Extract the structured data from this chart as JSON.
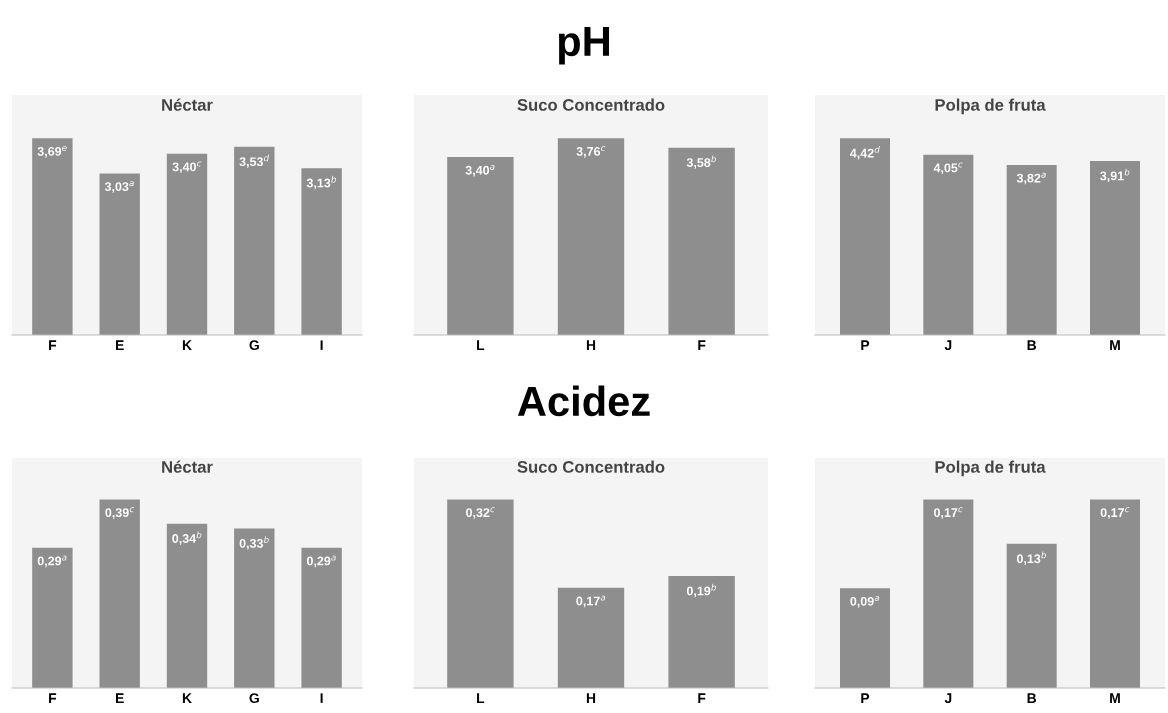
{
  "chart_data": [
    {
      "type": "bar",
      "title": "Néctar",
      "annotations": [
        "pH"
      ],
      "categories": [
        "F",
        "E",
        "K",
        "G",
        "I"
      ],
      "color": "#8e8e8e",
      "values": [
        3.69,
        3.03,
        3.4,
        3.53,
        3.13
      ],
      "value_labels": [
        "3,69$^{e}$",
        "3,03$^{a}$",
        "3,40$^{c}$",
        "3,53$^{d}$",
        "3,13$^{b}$"
      ]
    },
    {
      "type": "bar",
      "title": "Suco Concentrado",
      "categories": [
        "L",
        "H",
        "F"
      ],
      "color": "#8e8e8e",
      "values": [
        3.4,
        3.76,
        3.58
      ],
      "value_labels": [
        "3,40$^{a}$",
        "3,76$^{c}$",
        "3,58$^{b}$"
      ]
    },
    {
      "type": "bar",
      "title": "Polpa de fruta",
      "categories": [
        "P",
        "J",
        "B",
        "M"
      ],
      "color": "#8e8e8e",
      "values": [
        4.42,
        4.05,
        3.82,
        3.91
      ],
      "value_labels": [
        "4,42$^{d}$",
        "4,05$^{c}$",
        "3,82$^{a}$",
        "3,91$^{b}$"
      ]
    },
    {
      "type": "bar",
      "title": "Néctar",
      "annotations": [
        "Acidez"
      ],
      "categories": [
        "F",
        "E",
        "K",
        "G",
        "I"
      ],
      "color": "#8e8e8e",
      "values": [
        0.29,
        0.39,
        0.34,
        0.33,
        0.29
      ],
      "value_labels": [
        "0,29$^{a}$",
        "0,39$^{c}$",
        "0,34$^{b}$",
        "0,33$^{b}$",
        "0,29$^{a}$"
      ]
    },
    {
      "type": "bar",
      "title": "Suco Concentrado",
      "categories": [
        "L",
        "H",
        "F"
      ],
      "color": "#8e8e8e",
      "values": [
        0.32,
        0.17,
        0.19
      ],
      "value_labels": [
        "0,32$^{c}$",
        "0,17$^{a}$",
        "0,19$^{b}$"
      ]
    },
    {
      "type": "bar",
      "title": "Polpa de fruta",
      "categories": [
        "P",
        "J",
        "B",
        "M"
      ],
      "color": "#8e8e8e",
      "values": [
        0.09,
        0.17,
        0.13,
        0.17
      ],
      "value_labels": [
        "0,09$^{a}$",
        "0,17$^{c}$",
        "0,13$^{b}$",
        "0,17$^{c}$"
      ]
    }
  ]
}
